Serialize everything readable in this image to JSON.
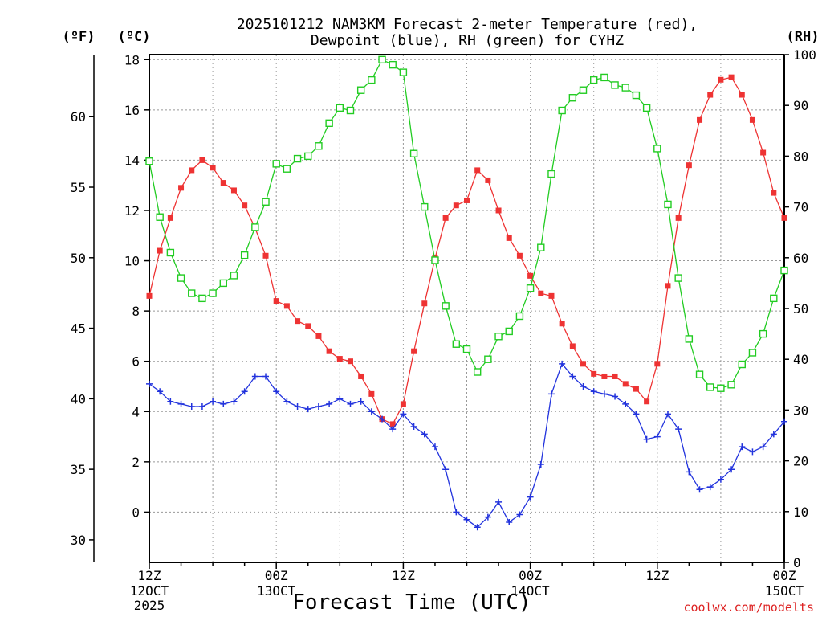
{
  "chart_data": {
    "type": "line",
    "title_line1": "2025101212 NAM3KM Forecast 2-meter Temperature (red),",
    "title_line2": "Dewpoint (blue), RH (green) for CYHZ",
    "xlabel": "Forecast Time (UTC)",
    "credit": "coolwx.com/modelts",
    "axes": {
      "left_f": {
        "unit_label": "(ºF)",
        "ticks": [
          30,
          35,
          40,
          45,
          50,
          55,
          60
        ],
        "ylim": [
          28.4,
          64.4
        ]
      },
      "left_c": {
        "unit_label": "(ºC)",
        "ticks": [
          0,
          2,
          4,
          6,
          8,
          10,
          12,
          14,
          16,
          18
        ],
        "ylim": [
          -2,
          18.2
        ]
      },
      "right_rh": {
        "unit_label": "(RH)",
        "ticks": [
          0,
          10,
          20,
          30,
          40,
          50,
          60,
          70,
          80,
          90,
          100
        ],
        "ylim": [
          0,
          100
        ]
      },
      "x": {
        "range_hours": [
          0,
          60
        ],
        "ticks": [
          {
            "hour": 0,
            "line1": "12Z",
            "line2": "12OCT",
            "line3": "2025"
          },
          {
            "hour": 12,
            "line1": "00Z",
            "line2": "13OCT",
            "line3": ""
          },
          {
            "hour": 24,
            "line1": "12Z",
            "line2": "",
            "line3": ""
          },
          {
            "hour": 36,
            "line1": "00Z",
            "line2": "14OCT",
            "line3": ""
          },
          {
            "hour": 48,
            "line1": "12Z",
            "line2": "",
            "line3": ""
          },
          {
            "hour": 60,
            "line1": "00Z",
            "line2": "15OCT",
            "line3": ""
          }
        ]
      }
    },
    "series": [
      {
        "name": "2-meter Temperature (°C)",
        "color": "#ee3333",
        "marker": "filled-square",
        "axis": "left_c",
        "x": [
          0,
          1,
          2,
          3,
          4,
          5,
          6,
          7,
          8,
          9,
          10,
          11,
          12,
          13,
          14,
          15,
          16,
          17,
          18,
          19,
          20,
          21,
          22,
          23,
          24,
          25,
          26,
          27,
          28,
          29,
          30,
          31,
          32,
          33,
          34,
          35,
          36,
          37,
          38,
          39,
          40,
          41,
          42,
          43,
          44,
          45,
          46,
          47,
          48,
          49,
          50,
          51,
          52,
          53,
          54,
          55,
          56,
          57,
          58,
          59,
          60
        ],
        "values": [
          8.6,
          10.4,
          11.7,
          12.9,
          13.6,
          14.0,
          13.7,
          13.1,
          12.8,
          12.2,
          11.3,
          10.2,
          8.4,
          8.2,
          7.6,
          7.4,
          7.0,
          6.4,
          6.1,
          6.0,
          5.4,
          4.7,
          3.7,
          3.5,
          4.3,
          6.4,
          8.3,
          10.1,
          11.7,
          12.2,
          12.4,
          13.6,
          13.2,
          12.0,
          10.9,
          10.2,
          9.4,
          8.7,
          8.6,
          7.5,
          6.6,
          5.9,
          5.5,
          5.4,
          5.4,
          5.1,
          4.9,
          4.4,
          5.9,
          9.0,
          11.7,
          13.8,
          15.6,
          16.6,
          17.2,
          17.3,
          16.6,
          15.6,
          14.3,
          12.7,
          11.7
        ]
      },
      {
        "name": "Dewpoint (°C)",
        "color": "#2233dd",
        "marker": "plus",
        "axis": "left_c",
        "x": [
          0,
          1,
          2,
          3,
          4,
          5,
          6,
          7,
          8,
          9,
          10,
          11,
          12,
          13,
          14,
          15,
          16,
          17,
          18,
          19,
          20,
          21,
          22,
          23,
          24,
          25,
          26,
          27,
          28,
          29,
          30,
          31,
          32,
          33,
          34,
          35,
          36,
          37,
          38,
          39,
          40,
          41,
          42,
          43,
          44,
          45,
          46,
          47,
          48,
          49,
          50,
          51,
          52,
          53,
          54,
          55,
          56,
          57,
          58,
          59,
          60
        ],
        "values": [
          5.1,
          4.8,
          4.4,
          4.3,
          4.2,
          4.2,
          4.4,
          4.3,
          4.4,
          4.8,
          5.4,
          5.4,
          4.8,
          4.4,
          4.2,
          4.1,
          4.2,
          4.3,
          4.5,
          4.3,
          4.4,
          4.0,
          3.7,
          3.3,
          3.9,
          3.4,
          3.1,
          2.6,
          1.7,
          0.0,
          -0.3,
          -0.6,
          -0.2,
          0.4,
          -0.4,
          -0.1,
          0.6,
          1.9,
          4.7,
          5.9,
          5.4,
          5.0,
          4.8,
          4.7,
          4.6,
          4.3,
          3.9,
          2.9,
          3.0,
          3.9,
          3.3,
          1.6,
          0.9,
          1.0,
          1.3,
          1.7,
          2.6,
          2.4,
          2.6,
          3.1,
          3.6
        ]
      },
      {
        "name": "RH (%)",
        "color": "#22cc22",
        "marker": "open-square",
        "axis": "right_rh",
        "x": [
          0,
          1,
          2,
          3,
          4,
          5,
          6,
          7,
          8,
          9,
          10,
          11,
          12,
          13,
          14,
          15,
          16,
          17,
          18,
          19,
          20,
          21,
          22,
          23,
          24,
          25,
          26,
          27,
          28,
          29,
          30,
          31,
          32,
          33,
          34,
          35,
          36,
          37,
          38,
          39,
          40,
          41,
          42,
          43,
          44,
          45,
          46,
          47,
          48,
          49,
          50,
          51,
          52,
          53,
          54,
          55,
          56,
          57,
          58,
          59,
          60
        ],
        "values": [
          79,
          68,
          61,
          56,
          53,
          52,
          53,
          55,
          56.5,
          60.5,
          66,
          71,
          78.5,
          77.5,
          79.5,
          80,
          82,
          86.5,
          89.5,
          89,
          93,
          95,
          99,
          98,
          96.5,
          80.5,
          70,
          59.5,
          50.5,
          43,
          42,
          37.5,
          40,
          44.5,
          45.5,
          48.5,
          54,
          62,
          76.5,
          89,
          91.5,
          93,
          95,
          95.5,
          94,
          93.5,
          92,
          89.5,
          81.5,
          70.5,
          56,
          44,
          37,
          34.5,
          34.3,
          35,
          39,
          41.3,
          45,
          52,
          57.5
        ]
      }
    ]
  }
}
